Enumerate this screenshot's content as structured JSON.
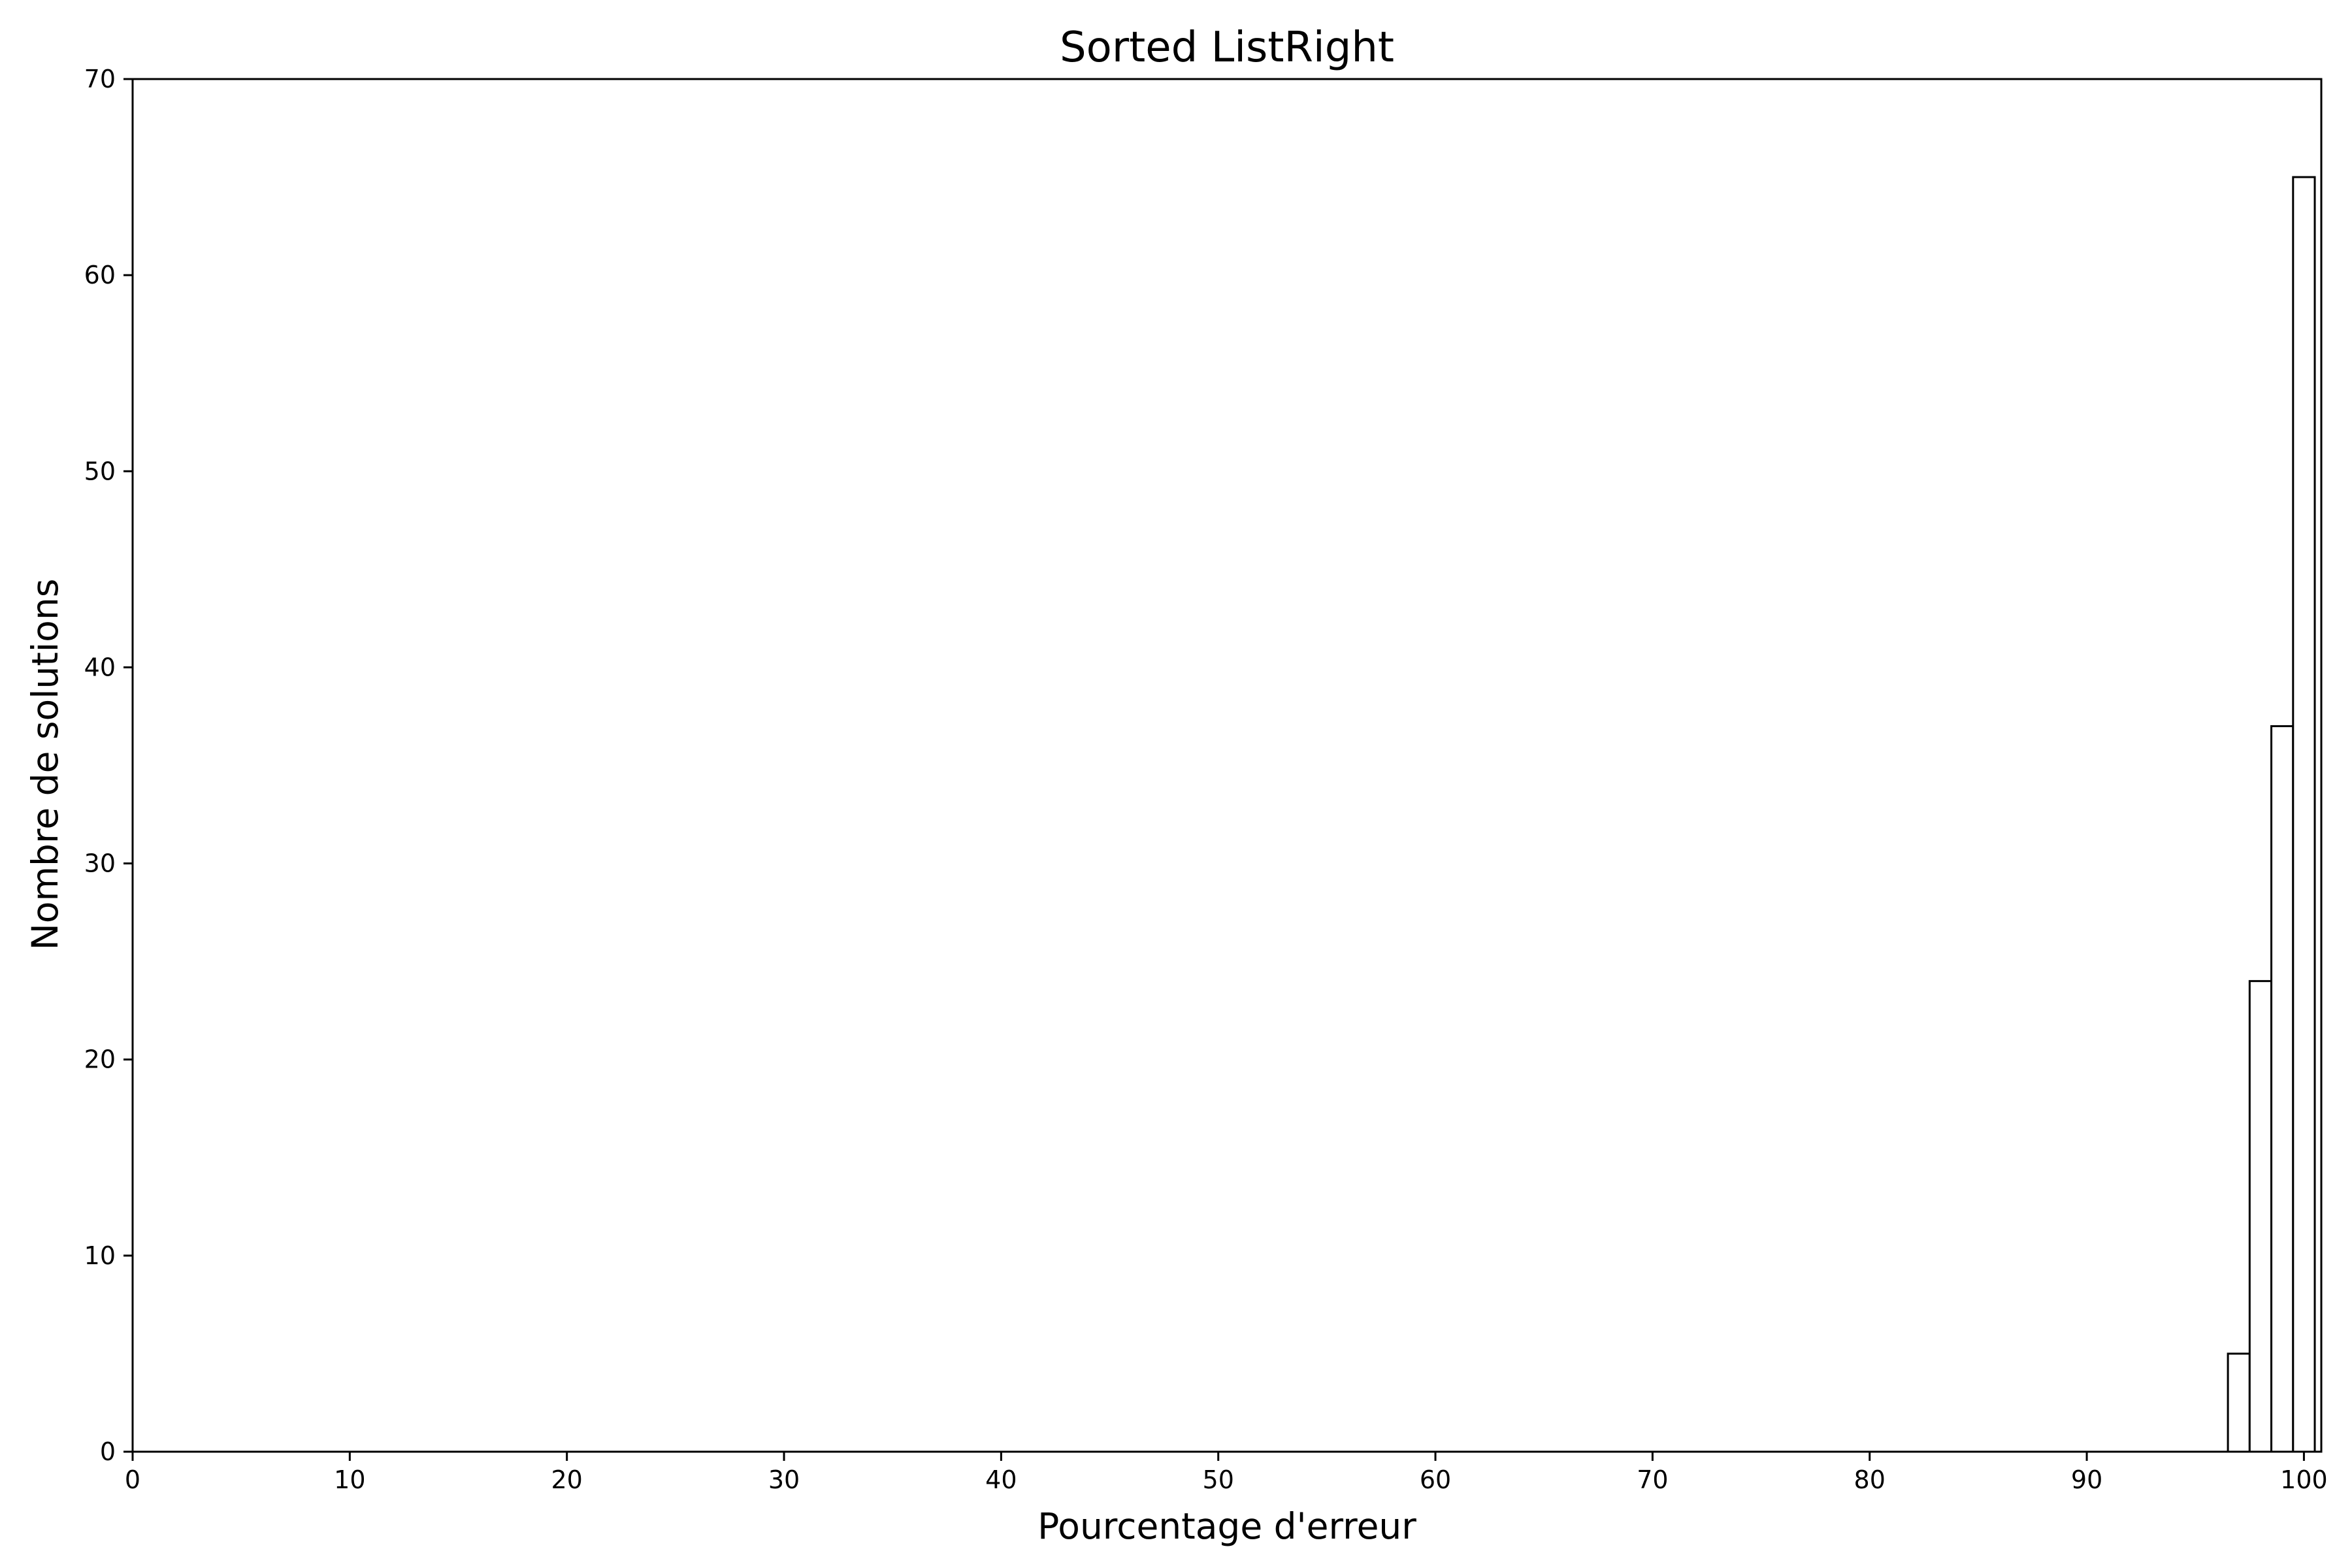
{
  "chart_data": {
    "type": "bar",
    "title": "Sorted ListRight",
    "xlabel": "Pourcentage d'erreur",
    "ylabel": "Nombre de solutions",
    "xlim": [
      0,
      100.8
    ],
    "ylim": [
      0,
      70
    ],
    "xticks": [
      0,
      10,
      20,
      30,
      40,
      50,
      60,
      70,
      80,
      90,
      100
    ],
    "yticks": [
      0,
      10,
      20,
      30,
      40,
      50,
      60,
      70
    ],
    "grid": false,
    "bar_fill": "#ffffff",
    "bar_edge": "#000000",
    "bins": [
      {
        "x0": 96.5,
        "x1": 97.5,
        "count": 5
      },
      {
        "x0": 97.5,
        "x1": 98.5,
        "count": 24
      },
      {
        "x0": 98.5,
        "x1": 99.5,
        "count": 37
      },
      {
        "x0": 99.5,
        "x1": 100.5,
        "count": 65
      }
    ]
  }
}
